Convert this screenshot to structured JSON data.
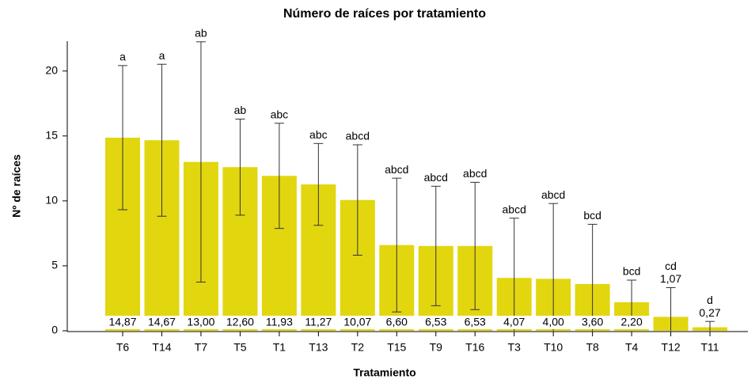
{
  "chart_data": {
    "type": "bar",
    "title": "Número de raíces por tratamiento",
    "x_label": "Tratamiento",
    "y_label": "Nº de raíces",
    "categories": [
      "T6",
      "T14",
      "T7",
      "T5",
      "T1",
      "T13",
      "T2",
      "T15",
      "T9",
      "T16",
      "T3",
      "T10",
      "T8",
      "T4",
      "T12",
      "T11"
    ],
    "values": [
      14.87,
      14.67,
      13.0,
      12.6,
      11.93,
      11.27,
      10.07,
      6.6,
      6.53,
      6.53,
      4.07,
      4.0,
      3.6,
      2.2,
      1.07,
      0.27
    ],
    "value_labels": [
      "14,87",
      "14,67",
      "13,00",
      "12,60",
      "11,93",
      "11,27",
      "10,07",
      "6,60",
      "6,53",
      "6,53",
      "4,07",
      "4,00",
      "3,60",
      "2,20",
      "1,07",
      "0,27"
    ],
    "errors": [
      5.55,
      5.85,
      9.25,
      3.7,
      4.05,
      3.15,
      4.25,
      5.15,
      4.6,
      4.9,
      4.6,
      5.8,
      4.6,
      1.7,
      2.25,
      0.45
    ],
    "letters": [
      "a",
      "a",
      "ab",
      "ab",
      "abc",
      "abc",
      "abcd",
      "abcd",
      "abcd",
      "abcd",
      "abcd",
      "abcd",
      "bcd",
      "bcd",
      "cd",
      "d"
    ],
    "color": "#e2d60f",
    "ylim": [
      0,
      22.3
    ],
    "yticks": [
      0,
      5,
      10,
      15,
      20
    ],
    "grid": false
  }
}
